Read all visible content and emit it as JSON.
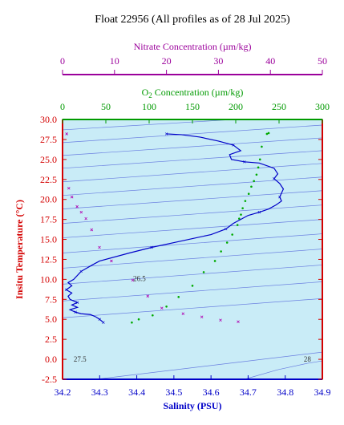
{
  "title": "Float 22956  (All profiles as of 28 Jul 2025)",
  "colors": {
    "plot_bg": "#c9ecf7",
    "temperature_axis": "#d40000",
    "salinity_axis": "#0000c8",
    "oxygen_axis": "#009a00",
    "nitrate_axis": "#9b009b",
    "density_contours": "#6a7fe0",
    "salinity_profile": "#0000c8",
    "oxygen_points": "#00aa00",
    "nitrate_points": "#b000b0"
  },
  "chart_data": {
    "type": "line",
    "title": "Float 22956  (All profiles as of 28 Jul 2025)",
    "axes": {
      "salinity": {
        "label": "Salinity (PSU)",
        "range": [
          34.2,
          34.9
        ],
        "ticks": [
          "34.2",
          "34.3",
          "34.4",
          "34.5",
          "34.6",
          "34.7",
          "34.8",
          "34.9"
        ]
      },
      "temperature": {
        "label": "Insitu Temperature (°C)",
        "range": [
          -2.5,
          30.0
        ],
        "ticks": [
          "-2.5",
          "0.0",
          "2.5",
          "5.0",
          "7.5",
          "10.0",
          "12.5",
          "15.0",
          "17.5",
          "20.0",
          "22.5",
          "25.0",
          "27.5",
          "30.0"
        ]
      },
      "oxygen": {
        "label": "O",
        "label_sub": "2",
        "label_rest": " Concentration (µm/kg)",
        "range": [
          0,
          300
        ],
        "ticks": [
          "0",
          "50",
          "100",
          "150",
          "200",
          "250",
          "300"
        ]
      },
      "nitrate": {
        "label": "Nitrate Concentration (µm/kg)",
        "range": [
          0,
          50
        ],
        "ticks": [
          "0",
          "10",
          "20",
          "30",
          "40",
          "50"
        ]
      }
    },
    "grid": false,
    "density_contours": {
      "labels": [
        {
          "text": "26.5",
          "s": 34.39,
          "t": 10.1
        },
        {
          "text": "27.5",
          "s": 34.23,
          "t": 0.0
        },
        {
          "text": "28",
          "s": 34.85,
          "t": 0.0
        }
      ],
      "lines": [
        [
          [
            34.29,
            -2.5
          ],
          [
            34.9,
            0.9
          ]
        ],
        [
          [
            34.2,
            5.2
          ],
          [
            34.9,
            7.6
          ]
        ],
        [
          [
            34.2,
            7.3
          ],
          [
            34.9,
            9.7
          ]
        ],
        [
          [
            34.2,
            9.4
          ],
          [
            34.9,
            11.8
          ]
        ],
        [
          [
            34.2,
            11.4
          ],
          [
            34.9,
            13.8
          ]
        ],
        [
          [
            34.2,
            13.3
          ],
          [
            34.9,
            15.7
          ]
        ],
        [
          [
            34.2,
            15.2
          ],
          [
            34.9,
            17.5
          ]
        ],
        [
          [
            34.2,
            17.0
          ],
          [
            34.9,
            19.3
          ]
        ],
        [
          [
            34.2,
            18.8
          ],
          [
            34.9,
            21.1
          ]
        ],
        [
          [
            34.2,
            20.5
          ],
          [
            34.9,
            22.8
          ]
        ],
        [
          [
            34.2,
            22.2
          ],
          [
            34.9,
            24.5
          ]
        ],
        [
          [
            34.2,
            23.9
          ],
          [
            34.9,
            26.1
          ]
        ],
        [
          [
            34.2,
            25.5
          ],
          [
            34.9,
            27.7
          ]
        ],
        [
          [
            34.2,
            27.1
          ],
          [
            34.9,
            29.3
          ]
        ],
        [
          [
            34.2,
            28.7
          ],
          [
            34.66,
            30.0
          ]
        ]
      ],
      "curve_28": [
        [
          34.69,
          -2.5
        ],
        [
          34.78,
          -1.3
        ],
        [
          34.86,
          -0.5
        ],
        [
          34.9,
          -0.2
        ]
      ]
    },
    "salinity_profile": [
      [
        34.48,
        28.2
      ],
      [
        34.52,
        28.1
      ],
      [
        34.57,
        27.8
      ],
      [
        34.62,
        27.3
      ],
      [
        34.66,
        26.8
      ],
      [
        34.68,
        26.1
      ],
      [
        34.65,
        25.6
      ],
      [
        34.655,
        25.0
      ],
      [
        34.69,
        24.7
      ],
      [
        34.73,
        24.55
      ],
      [
        34.77,
        23.9
      ],
      [
        34.78,
        23.2
      ],
      [
        34.77,
        22.6
      ],
      [
        34.785,
        22.0
      ],
      [
        34.795,
        21.3
      ],
      [
        34.79,
        20.8
      ],
      [
        34.785,
        20.3
      ],
      [
        34.79,
        19.8
      ],
      [
        34.775,
        19.3
      ],
      [
        34.755,
        18.8
      ],
      [
        34.73,
        18.4
      ],
      [
        34.7,
        18.0
      ],
      [
        34.68,
        17.5
      ],
      [
        34.66,
        17.0
      ],
      [
        34.64,
        16.3
      ],
      [
        34.6,
        15.6
      ],
      [
        34.55,
        15.1
      ],
      [
        34.5,
        14.6
      ],
      [
        34.44,
        14.0
      ],
      [
        34.38,
        13.3
      ],
      [
        34.3,
        12.3
      ],
      [
        34.28,
        11.8
      ],
      [
        34.25,
        11.0
      ],
      [
        34.23,
        10.0
      ],
      [
        34.215,
        9.6
      ],
      [
        34.225,
        9.2
      ],
      [
        34.21,
        8.7
      ],
      [
        34.225,
        8.3
      ],
      [
        34.215,
        7.9
      ],
      [
        34.22,
        7.5
      ],
      [
        34.24,
        7.1
      ],
      [
        34.225,
        6.8
      ],
      [
        34.24,
        6.5
      ],
      [
        34.22,
        6.2
      ],
      [
        34.235,
        5.9
      ],
      [
        34.25,
        5.7
      ],
      [
        34.275,
        5.6
      ],
      [
        34.29,
        5.3
      ],
      [
        34.3,
        5.0
      ],
      [
        34.31,
        4.6
      ]
    ],
    "oxygen_points": [
      [
        238,
        28.3
      ],
      [
        236,
        28.2
      ],
      [
        230,
        26.6
      ],
      [
        228,
        25.0
      ],
      [
        226,
        24.0
      ],
      [
        224,
        23.1
      ],
      [
        221,
        22.3
      ],
      [
        218,
        21.6
      ],
      [
        215,
        20.7
      ],
      [
        211,
        19.8
      ],
      [
        208,
        18.9
      ],
      [
        206,
        18.1
      ],
      [
        204,
        17.6
      ],
      [
        202,
        16.8
      ],
      [
        196,
        15.6
      ],
      [
        190,
        14.6
      ],
      [
        183,
        13.5
      ],
      [
        176,
        12.3
      ],
      [
        163,
        10.9
      ],
      [
        150,
        9.2
      ],
      [
        134,
        7.8
      ],
      [
        120,
        6.6
      ],
      [
        104,
        5.5
      ],
      [
        88,
        5.0
      ],
      [
        80,
        4.6
      ]
    ],
    "nitrate_points": [
      [
        0.8,
        28.2
      ],
      [
        1.2,
        21.4
      ],
      [
        1.8,
        20.3
      ],
      [
        2.8,
        19.1
      ],
      [
        3.6,
        18.4
      ],
      [
        4.5,
        17.6
      ],
      [
        5.6,
        16.2
      ],
      [
        7.1,
        14.0
      ],
      [
        9.4,
        12.3
      ],
      [
        13.5,
        9.9
      ],
      [
        16.4,
        7.9
      ],
      [
        19.1,
        6.4
      ],
      [
        23.2,
        5.7
      ],
      [
        26.8,
        5.3
      ],
      [
        30.4,
        4.9
      ],
      [
        33.8,
        4.7
      ]
    ]
  }
}
